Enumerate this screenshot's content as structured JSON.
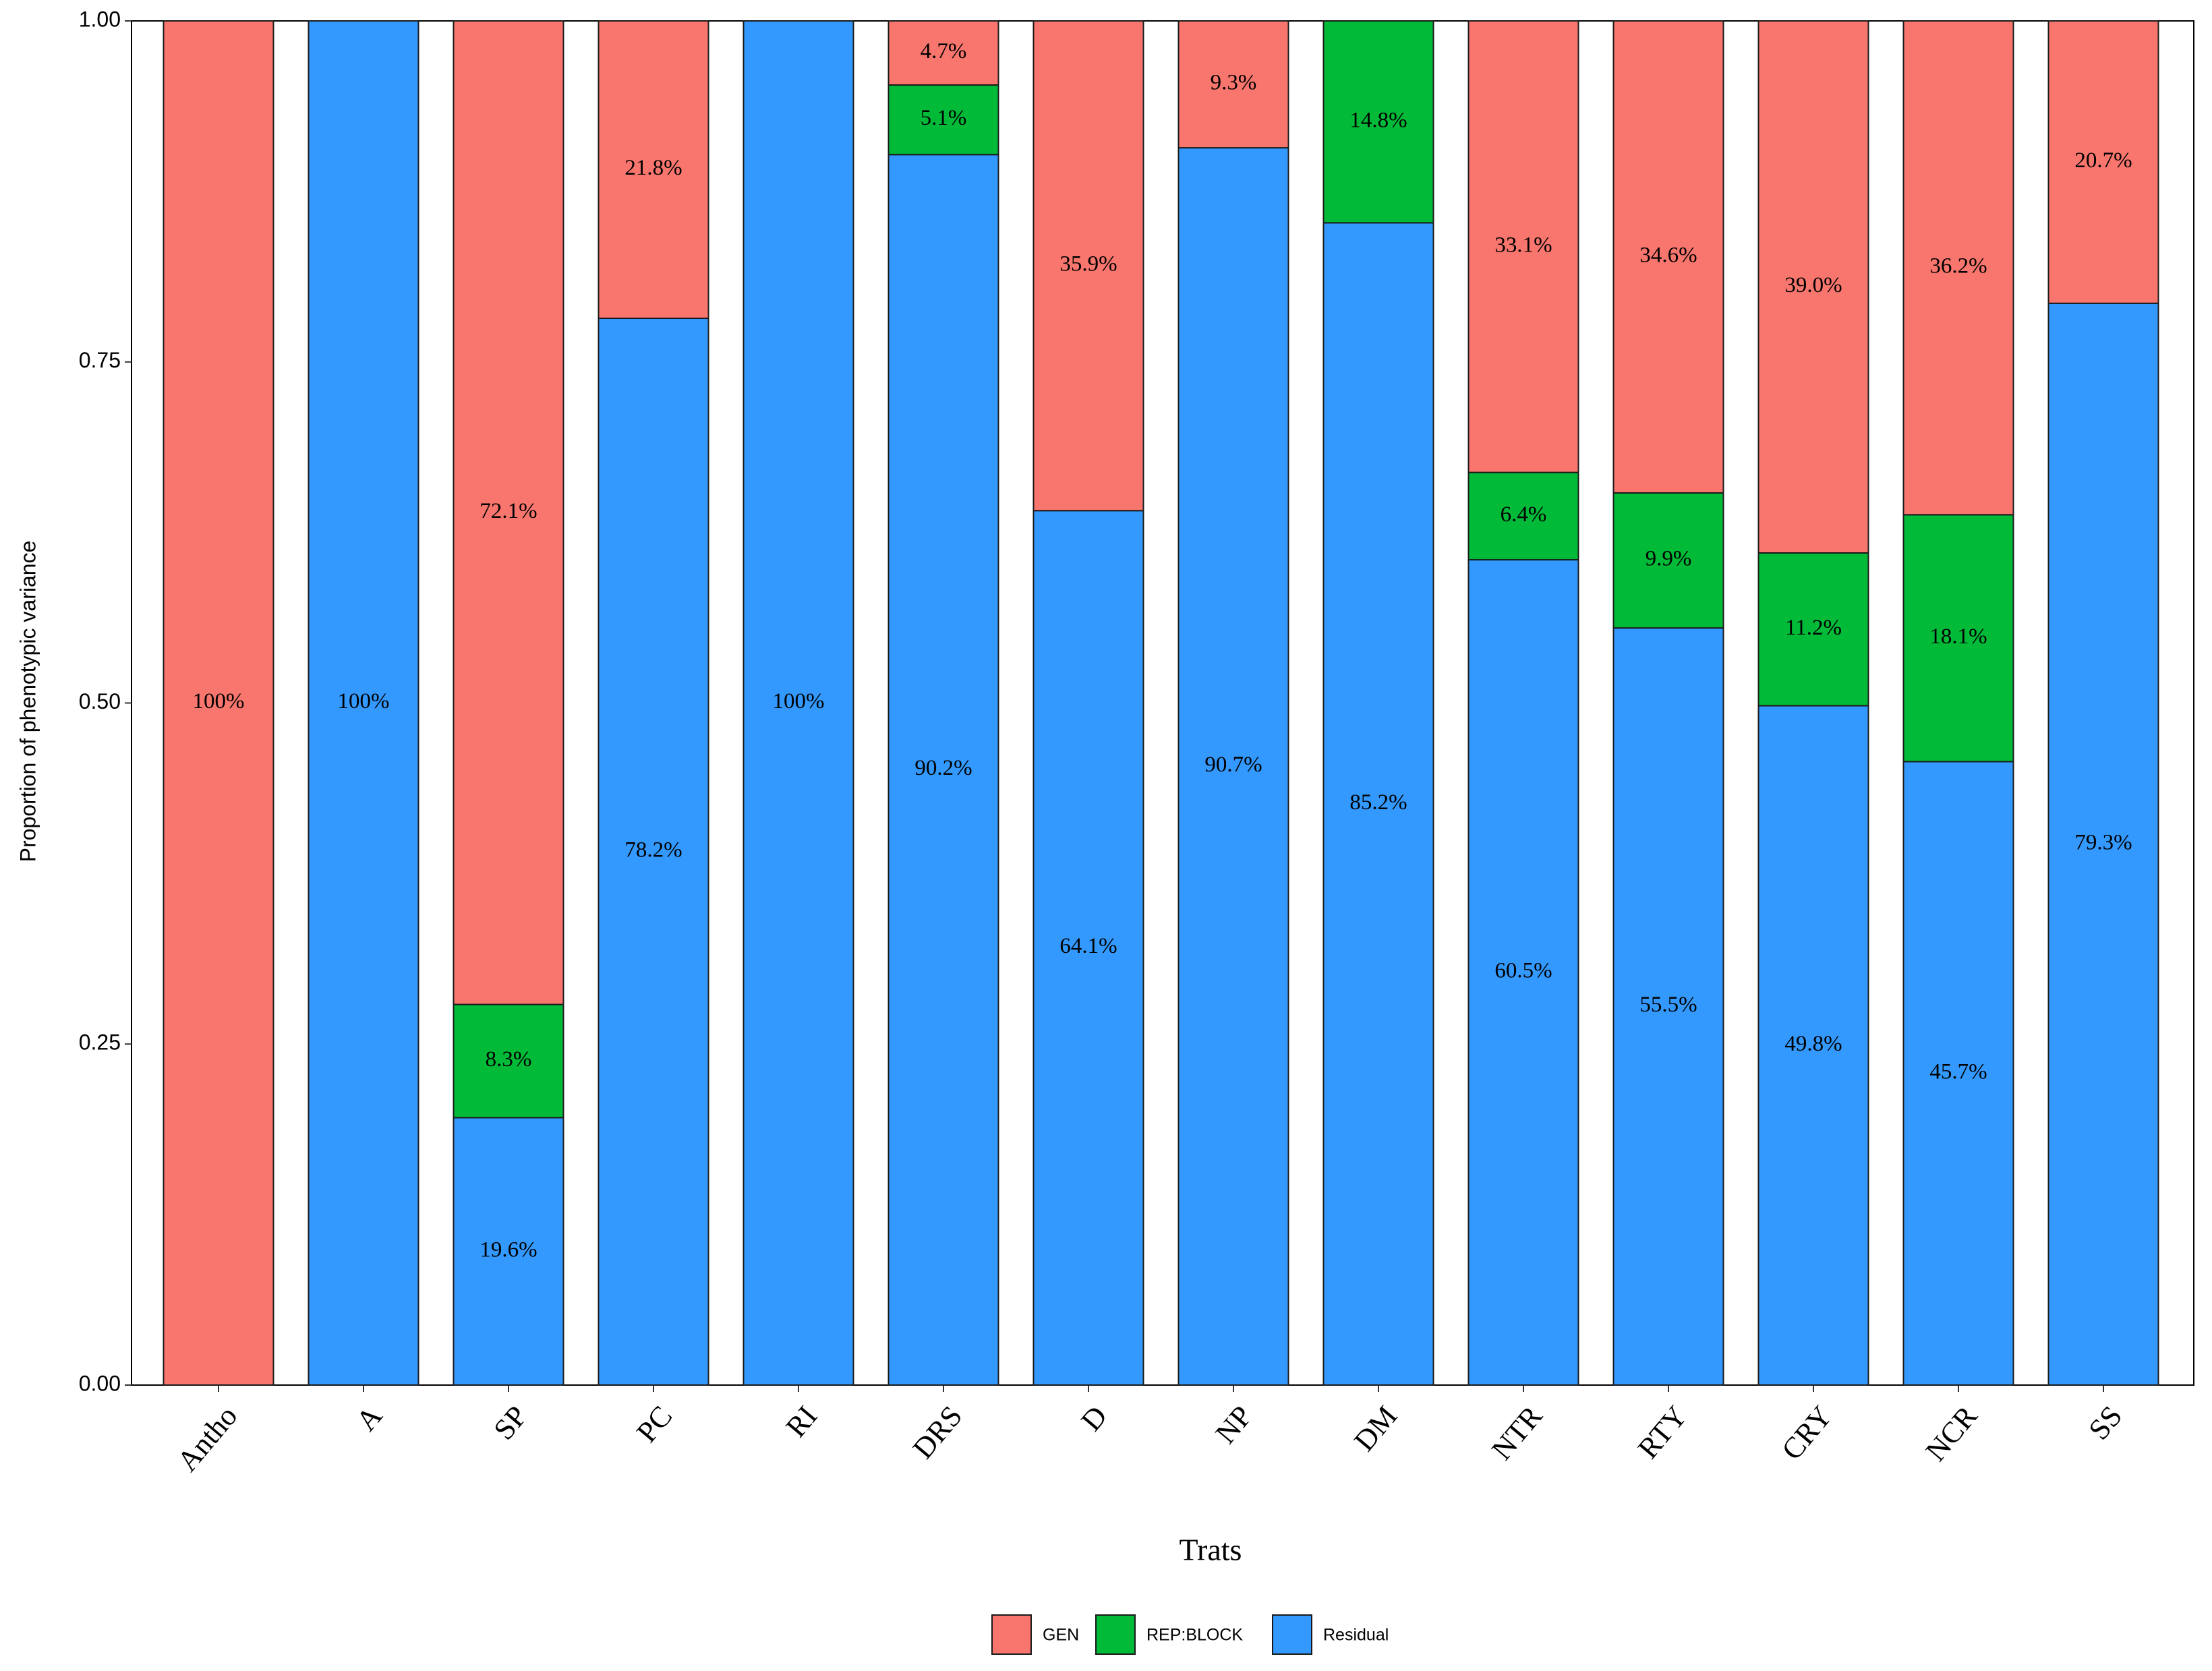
{
  "chart_data": {
    "type": "stacked_bar",
    "x_label": "Trats",
    "y_label": "Proportion of phenotypic variance",
    "categories": [
      "Antho",
      "A",
      "SP",
      "PC",
      "RI",
      "DRS",
      "D",
      "NP",
      "DM",
      "NTR",
      "RTY",
      "CRY",
      "NCR",
      "SS"
    ],
    "series": [
      {
        "name": "Residual",
        "color": "#3399ff",
        "values": [
          null,
          1.0,
          0.196,
          0.782,
          1.0,
          0.902,
          0.641,
          0.907,
          0.852,
          0.605,
          0.555,
          0.498,
          0.457,
          0.793
        ],
        "value_labels": [
          null,
          "100%",
          "19.6%",
          "78.2%",
          "100%",
          "90.2%",
          "64.1%",
          "90.7%",
          "85.2%",
          "60.5%",
          "55.5%",
          "49.8%",
          "45.7%",
          "79.3%"
        ]
      },
      {
        "name": "REP:BLOCK",
        "color": "#00ba38",
        "values": [
          null,
          null,
          0.083,
          null,
          null,
          0.051,
          null,
          null,
          0.148,
          0.064,
          0.099,
          0.112,
          0.181,
          null
        ],
        "value_labels": [
          null,
          null,
          "8.3%",
          null,
          null,
          "5.1%",
          null,
          null,
          "14.8%",
          "6.4%",
          "9.9%",
          "11.2%",
          "18.1%",
          null
        ]
      },
      {
        "name": "GEN",
        "color": "#f8766d",
        "values": [
          1.0,
          null,
          0.721,
          0.218,
          null,
          0.047,
          0.359,
          0.093,
          null,
          0.331,
          0.346,
          0.39,
          0.362,
          0.207
        ],
        "value_labels": [
          "100%",
          null,
          "72.1%",
          "21.8%",
          null,
          "4.7%",
          "35.9%",
          "9.3%",
          null,
          "33.1%",
          "34.6%",
          "39.0%",
          "36.2%",
          "20.7%"
        ]
      }
    ],
    "legend_order": [
      2,
      1,
      0
    ],
    "ylim": [
      0,
      1
    ],
    "yticks": [
      {
        "value": 0,
        "label": "0.00"
      },
      {
        "value": 0.25,
        "label": "0.25"
      },
      {
        "value": 0.5,
        "label": "0.50"
      },
      {
        "value": 0.75,
        "label": "0.75"
      },
      {
        "value": 1,
        "label": "1.00"
      }
    ],
    "legend": "bottom"
  }
}
